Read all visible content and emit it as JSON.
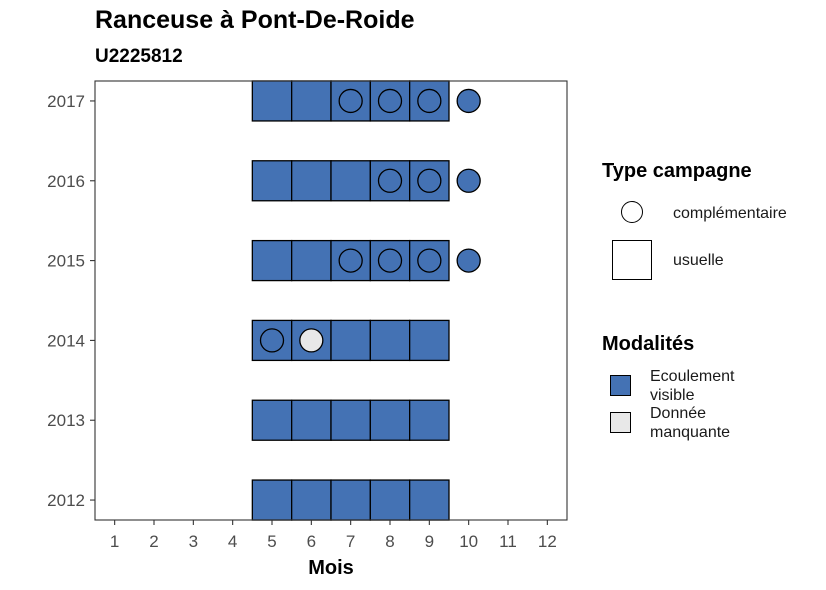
{
  "chart_data": {
    "type": "heatmap",
    "title": "Ranceuse à Pont-De-Roide",
    "subtitle": "U2225812",
    "xlabel": "Mois",
    "ylabel": "",
    "x_ticks": [
      "1",
      "2",
      "3",
      "4",
      "5",
      "6",
      "7",
      "8",
      "9",
      "10",
      "11",
      "12"
    ],
    "y_ticks": [
      "2012",
      "2013",
      "2014",
      "2015",
      "2016",
      "2017"
    ],
    "xlim": [
      0.5,
      12.5
    ],
    "ylim": [
      2011.75,
      2017.25
    ],
    "grid": false,
    "legend_position": "right",
    "colors": {
      "Ecoulement visible": "#4472b4",
      "Donnée manquante": "#e8e8e8"
    },
    "usuelle": [
      {
        "year": 2012,
        "month": 5,
        "modalite": "Ecoulement visible"
      },
      {
        "year": 2012,
        "month": 6,
        "modalite": "Ecoulement visible"
      },
      {
        "year": 2012,
        "month": 7,
        "modalite": "Ecoulement visible"
      },
      {
        "year": 2012,
        "month": 8,
        "modalite": "Ecoulement visible"
      },
      {
        "year": 2012,
        "month": 9,
        "modalite": "Ecoulement visible"
      },
      {
        "year": 2013,
        "month": 5,
        "modalite": "Ecoulement visible"
      },
      {
        "year": 2013,
        "month": 6,
        "modalite": "Ecoulement visible"
      },
      {
        "year": 2013,
        "month": 7,
        "modalite": "Ecoulement visible"
      },
      {
        "year": 2013,
        "month": 8,
        "modalite": "Ecoulement visible"
      },
      {
        "year": 2013,
        "month": 9,
        "modalite": "Ecoulement visible"
      },
      {
        "year": 2014,
        "month": 5,
        "modalite": "Ecoulement visible"
      },
      {
        "year": 2014,
        "month": 6,
        "modalite": "Ecoulement visible"
      },
      {
        "year": 2014,
        "month": 7,
        "modalite": "Ecoulement visible"
      },
      {
        "year": 2014,
        "month": 8,
        "modalite": "Ecoulement visible"
      },
      {
        "year": 2014,
        "month": 9,
        "modalite": "Ecoulement visible"
      },
      {
        "year": 2015,
        "month": 5,
        "modalite": "Ecoulement visible"
      },
      {
        "year": 2015,
        "month": 6,
        "modalite": "Ecoulement visible"
      },
      {
        "year": 2015,
        "month": 7,
        "modalite": "Ecoulement visible"
      },
      {
        "year": 2015,
        "month": 8,
        "modalite": "Ecoulement visible"
      },
      {
        "year": 2015,
        "month": 9,
        "modalite": "Ecoulement visible"
      },
      {
        "year": 2016,
        "month": 5,
        "modalite": "Ecoulement visible"
      },
      {
        "year": 2016,
        "month": 6,
        "modalite": "Ecoulement visible"
      },
      {
        "year": 2016,
        "month": 7,
        "modalite": "Ecoulement visible"
      },
      {
        "year": 2016,
        "month": 8,
        "modalite": "Ecoulement visible"
      },
      {
        "year": 2016,
        "month": 9,
        "modalite": "Ecoulement visible"
      },
      {
        "year": 2017,
        "month": 5,
        "modalite": "Ecoulement visible"
      },
      {
        "year": 2017,
        "month": 6,
        "modalite": "Ecoulement visible"
      },
      {
        "year": 2017,
        "month": 7,
        "modalite": "Ecoulement visible"
      },
      {
        "year": 2017,
        "month": 8,
        "modalite": "Ecoulement visible"
      },
      {
        "year": 2017,
        "month": 9,
        "modalite": "Ecoulement visible"
      }
    ],
    "complementaire": [
      {
        "year": 2014,
        "month": 5,
        "modalite": "Ecoulement visible"
      },
      {
        "year": 2014,
        "month": 6,
        "modalite": "Donnée manquante"
      },
      {
        "year": 2015,
        "month": 7,
        "modalite": "Ecoulement visible"
      },
      {
        "year": 2015,
        "month": 8,
        "modalite": "Ecoulement visible"
      },
      {
        "year": 2015,
        "month": 9,
        "modalite": "Ecoulement visible"
      },
      {
        "year": 2015,
        "month": 10,
        "modalite": "Ecoulement visible"
      },
      {
        "year": 2016,
        "month": 8,
        "modalite": "Ecoulement visible"
      },
      {
        "year": 2016,
        "month": 9,
        "modalite": "Ecoulement visible"
      },
      {
        "year": 2016,
        "month": 10,
        "modalite": "Ecoulement visible"
      },
      {
        "year": 2017,
        "month": 7,
        "modalite": "Ecoulement visible"
      },
      {
        "year": 2017,
        "month": 8,
        "modalite": "Ecoulement visible"
      },
      {
        "year": 2017,
        "month": 9,
        "modalite": "Ecoulement visible"
      },
      {
        "year": 2017,
        "month": 10,
        "modalite": "Ecoulement visible"
      }
    ]
  },
  "legend": {
    "type_title": "Type campagne",
    "type_items": [
      "complémentaire",
      "usuelle"
    ],
    "modalites_title": "Modalités",
    "modalites_items": [
      "Ecoulement visible",
      "Donnée manquante"
    ]
  }
}
